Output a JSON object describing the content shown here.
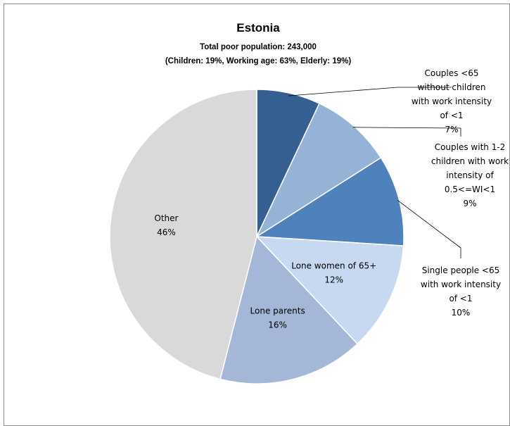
{
  "chart_data": {
    "type": "pie",
    "title": "Estonia",
    "subtitle_lines": [
      "Total poor population: 243,000",
      "(Children: 19%, Working age: 63%, Elderly: 19%)"
    ],
    "slices": [
      {
        "label_lines": [
          "Couples <65",
          "without children",
          "with work intensity",
          "of <1"
        ],
        "value": 7,
        "value_label": "7%",
        "color": "#365f91"
      },
      {
        "label_lines": [
          "Couples with 1-2",
          "children with work",
          "intensity of",
          "0.5<=WI<1"
        ],
        "value": 9,
        "value_label": "9%",
        "color": "#95b3d7"
      },
      {
        "label_lines": [
          "Single people <65",
          "with work intensity",
          "of <1"
        ],
        "value": 10,
        "value_label": "10%",
        "color": "#4f81bd"
      },
      {
        "label_lines": [
          "Lone women of 65+"
        ],
        "value": 12,
        "value_label": "12%",
        "color": "#c6d9f1"
      },
      {
        "label_lines": [
          "Lone parents"
        ],
        "value": 16,
        "value_label": "16%",
        "color": "#a4b7d6"
      },
      {
        "label_lines": [
          "Other"
        ],
        "value": 46,
        "value_label": "46%",
        "color": "#d9d9d9"
      }
    ]
  }
}
